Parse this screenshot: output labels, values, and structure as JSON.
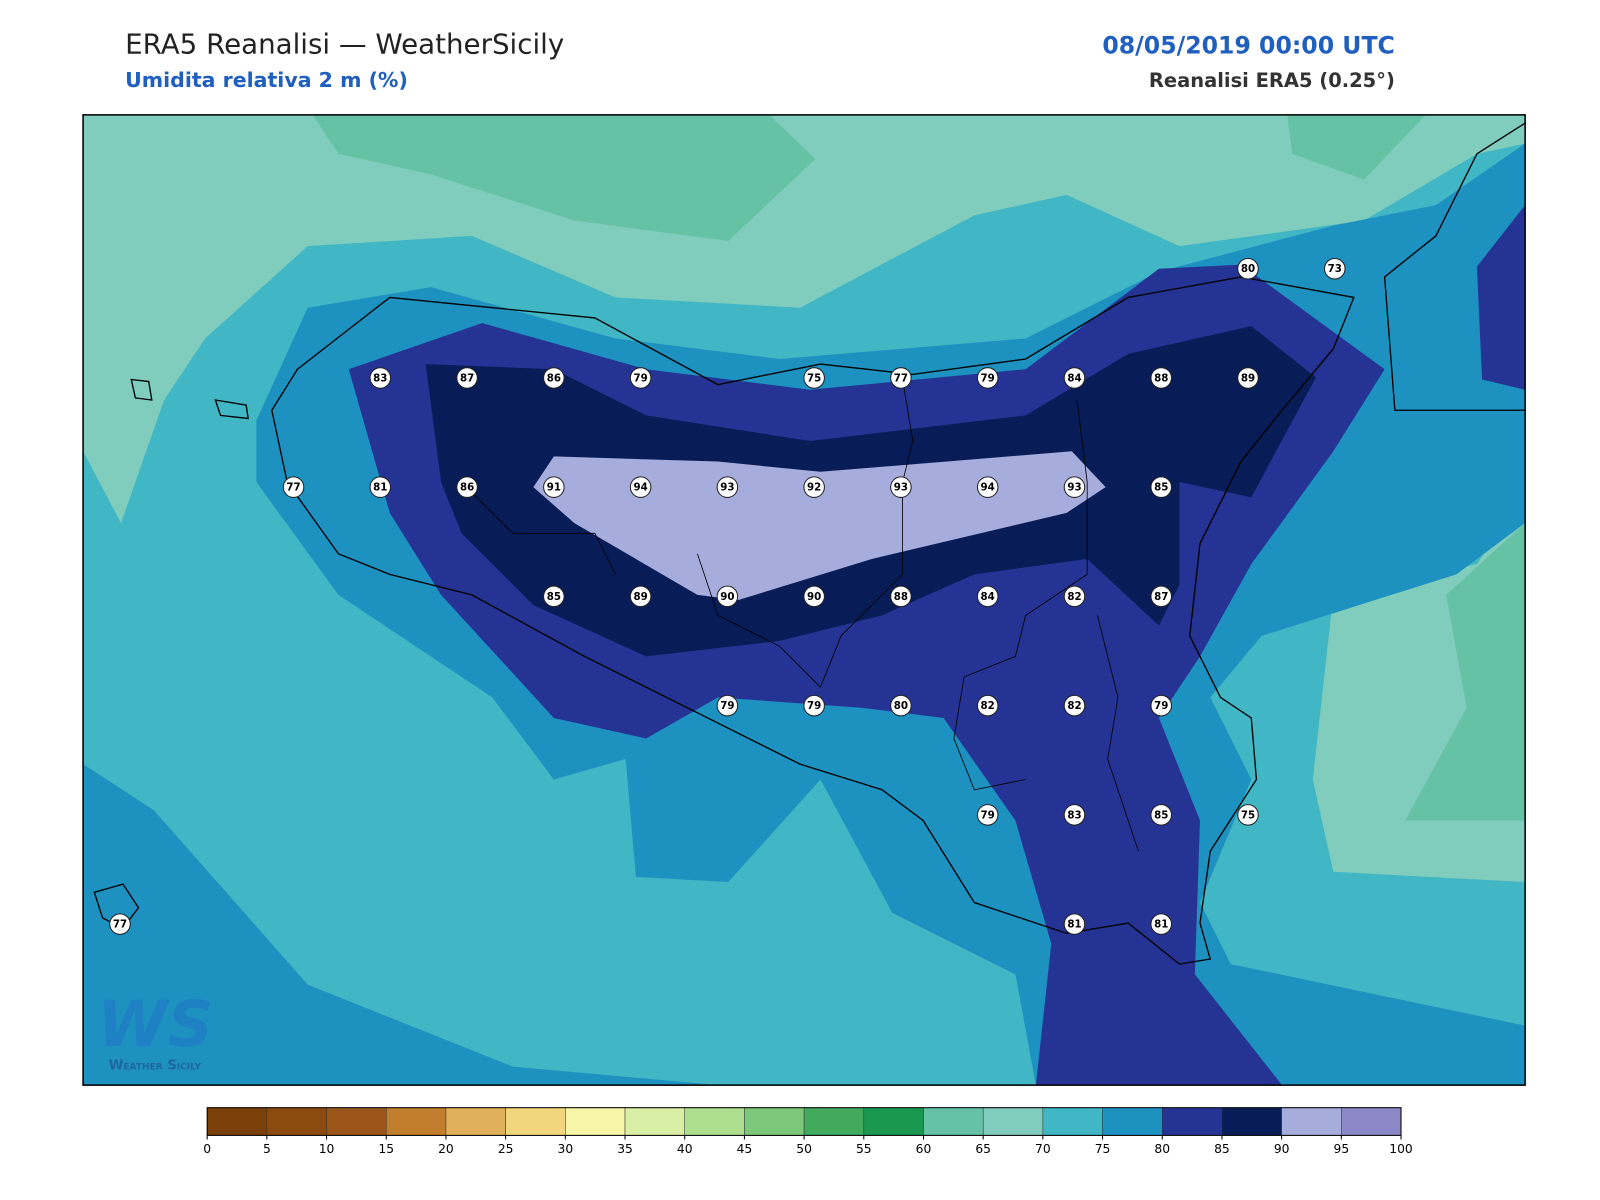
{
  "header": {
    "title": "ERA5 Reanalisi — WeatherSicily",
    "subtitle": "Umidita relativa 2 m (%)",
    "datetime": "08/05/2019 00:00 UTC",
    "source": "Reanalisi ERA5 (0.25°)"
  },
  "logo": {
    "mark": "WS",
    "text": "Weather Sicily"
  },
  "stations": {
    "rows": [
      [
        null,
        null,
        null,
        null,
        null,
        null,
        null,
        null,
        null,
        null,
        null,
        null,
        null,
        80,
        73
      ],
      [
        null,
        null,
        null,
        83,
        87,
        86,
        79,
        null,
        75,
        77,
        79,
        84,
        88,
        89,
        null
      ],
      [
        null,
        null,
        77,
        81,
        86,
        91,
        94,
        93,
        92,
        93,
        94,
        93,
        85,
        null,
        null
      ],
      [
        null,
        null,
        null,
        null,
        null,
        85,
        89,
        90,
        90,
        88,
        84,
        82,
        87,
        null,
        null
      ],
      [
        null,
        null,
        null,
        null,
        null,
        null,
        null,
        79,
        79,
        80,
        82,
        82,
        79,
        null,
        null
      ],
      [
        null,
        null,
        null,
        null,
        null,
        null,
        null,
        null,
        null,
        null,
        79,
        83,
        85,
        75,
        null
      ],
      [
        77,
        null,
        null,
        null,
        null,
        null,
        null,
        null,
        null,
        null,
        null,
        81,
        81,
        null,
        null
      ]
    ]
  },
  "colorbar": {
    "levels": [
      0,
      5,
      10,
      15,
      20,
      25,
      30,
      35,
      40,
      45,
      50,
      55,
      60,
      65,
      70,
      75,
      80,
      85,
      90,
      95,
      100
    ],
    "colors": [
      "#7b3f08",
      "#8c4a0e",
      "#9c5518",
      "#c17e2c",
      "#e0b05a",
      "#f2d67e",
      "#f7f5a8",
      "#d9efa6",
      "#addf8f",
      "#7cc77a",
      "#42aa5d",
      "#1a9850",
      "#66c2a5",
      "#80cdbd",
      "#41b6c4",
      "#1d91c0",
      "#253494",
      "#081d58",
      "#a6acdc",
      "#8c89c8"
    ]
  }
}
